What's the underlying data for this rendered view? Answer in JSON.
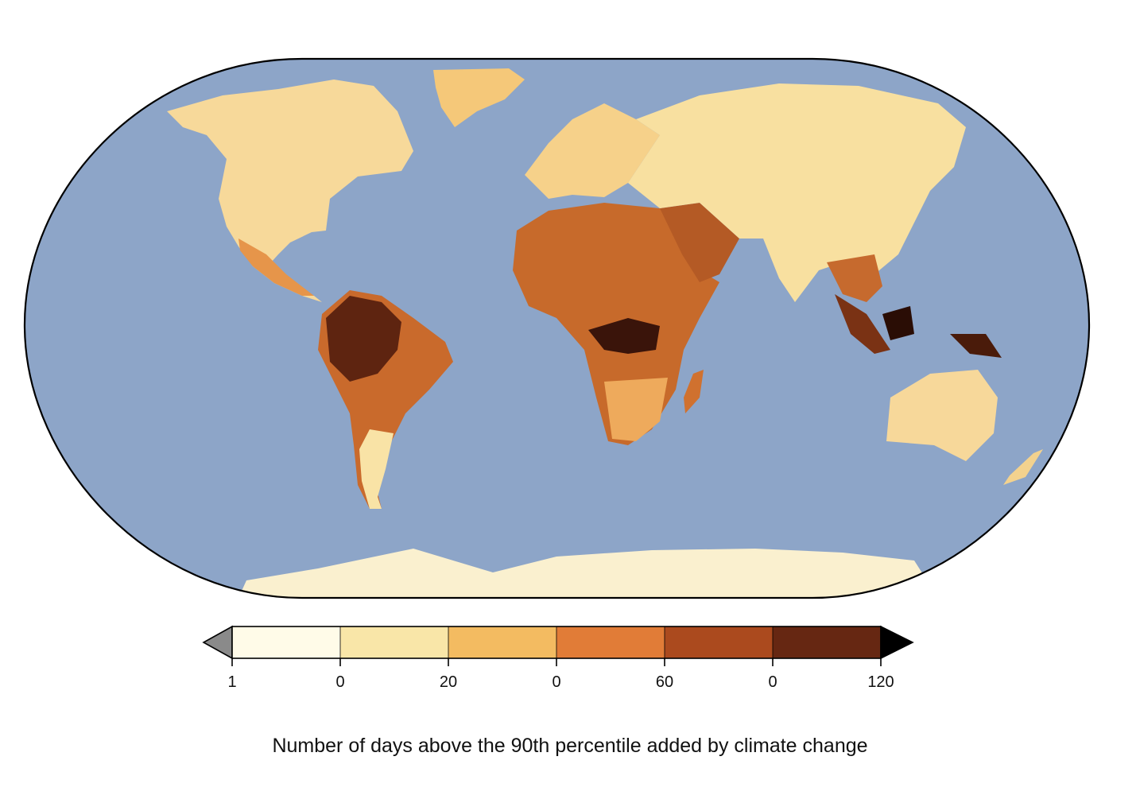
{
  "caption": "Number of days above the 90th percentile added by climate change",
  "colors": {
    "ocean": "#8da5c8",
    "outline": "#000000",
    "borders": "#5a4a3a"
  },
  "legend": {
    "under_color": "#8a8a8a",
    "over_color": "#000000",
    "bins": [
      "#fffbe8",
      "#f9e6a8",
      "#f3bb61",
      "#e17c37",
      "#ab4a1e",
      "#662712"
    ],
    "tick_labels": [
      "1",
      "0",
      "20",
      "0",
      "60",
      "0",
      "120"
    ]
  },
  "map": {
    "projection": "Robinson",
    "land_shading": "heat-day anomaly"
  }
}
